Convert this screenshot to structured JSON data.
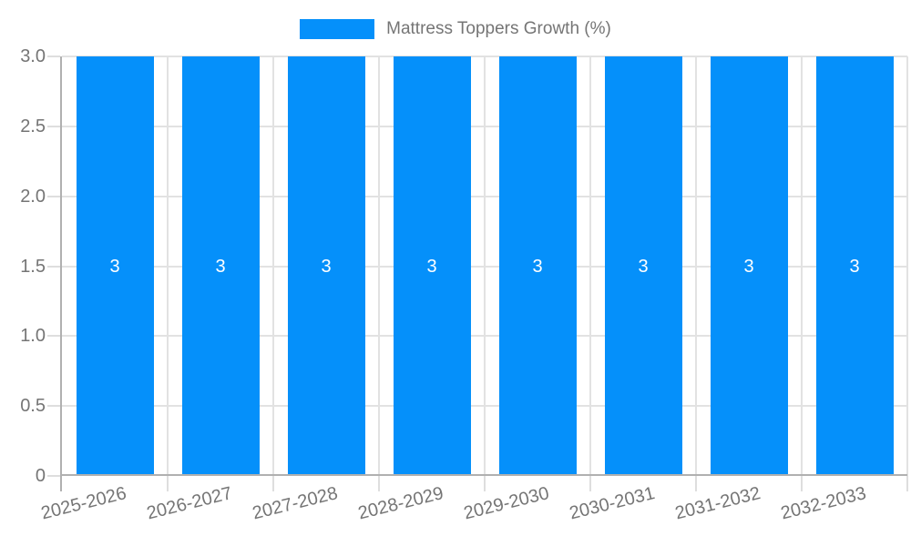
{
  "chart_data": {
    "type": "bar",
    "title": "Mattress Toppers Growth (%)",
    "legend": [
      "Mattress Toppers Growth (%)"
    ],
    "legend_position": "top-center",
    "categories": [
      "2025-2026",
      "2026-2027",
      "2027-2028",
      "2028-2029",
      "2029-2030",
      "2030-2031",
      "2031-2032",
      "2032-2033"
    ],
    "values": [
      3,
      3,
      3,
      3,
      3,
      3,
      3,
      3
    ],
    "bar_labels": [
      "3",
      "3",
      "3",
      "3",
      "3",
      "3",
      "3",
      "3"
    ],
    "xlabel": "",
    "ylabel": "",
    "ylim": [
      0,
      3
    ],
    "yticks": [
      0,
      0.5,
      1,
      1.5,
      2,
      2.5,
      3
    ],
    "ytick_labels": [
      "0",
      "0.5",
      "1.0",
      "1.5",
      "2.0",
      "2.5",
      "3.0"
    ],
    "x_tick_rotation_deg": -14,
    "grid": true,
    "colors": {
      "bar": "#0590fa",
      "grid": "#e2e2e2",
      "axis": "#b0b0b0",
      "tick": "#dedede",
      "text": "#757575",
      "bar_label": "#ffffff",
      "background": "#ffffff"
    }
  }
}
